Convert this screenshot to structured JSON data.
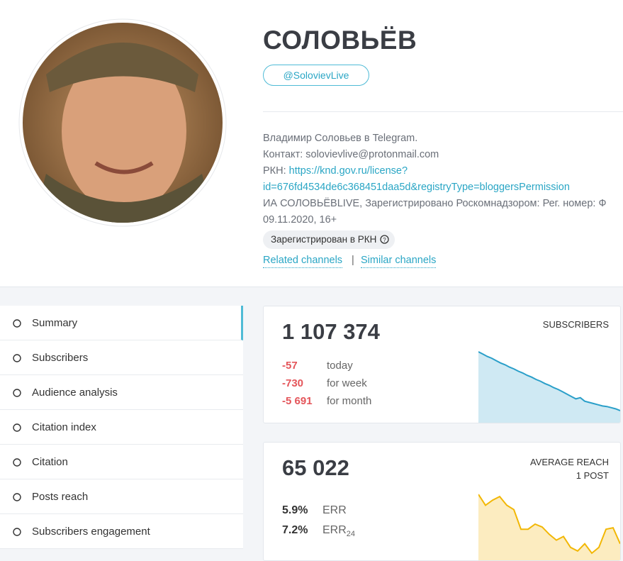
{
  "channel": {
    "title": "СОЛОВЬЁВ",
    "handle": "@SolovievLive",
    "description": {
      "line0": "Владимир Соловьев в Telegram.",
      "line1": "Контакт: solovievlive@protonmail.com",
      "rkn_prefix": "РКН: ",
      "rkn_link_1": "https://knd.gov.ru/license?",
      "rkn_link_2": "id=676fd4534de6c368451daa5d&registryType=bloggersPermission",
      "line4": "ИА СОЛОВЬЁВLIVE, Зарегистрировано Роскомнадзором: Рег. номер: Ф",
      "line5": "09.11.2020, 16+"
    },
    "badge": "Зарегистрирован в РКН",
    "links": [
      "Related channels",
      "Similar channels"
    ],
    "separator": "|"
  },
  "menu": [
    "Summary",
    "Subscribers",
    "Audience analysis",
    "Citation index",
    "Citation",
    "Posts reach",
    "Subscribers engagement"
  ],
  "subscribers_card": {
    "value": "1 107 374",
    "label": "SUBSCRIBERS",
    "changes": [
      {
        "value": "-57",
        "period": "today"
      },
      {
        "value": "-730",
        "period": "for week"
      },
      {
        "value": "-5 691",
        "period": "for month"
      }
    ],
    "trend": [
      100,
      96,
      92,
      89,
      85,
      81,
      78,
      74,
      71,
      67,
      64,
      60,
      57,
      53,
      50,
      46,
      43,
      39,
      36,
      32,
      28,
      24,
      20,
      22,
      16,
      14,
      12,
      10,
      8,
      7,
      5,
      3,
      0
    ]
  },
  "reach_card": {
    "value": "65 022",
    "label": [
      "AVERAGE REACH",
      "1 POST"
    ],
    "stats": [
      {
        "value": "5.9%",
        "label": "ERR"
      },
      {
        "value": "7.2%",
        "label": "ERR",
        "sub": "24"
      }
    ],
    "trend": [
      92,
      77,
      84,
      89,
      77,
      71,
      44,
      44,
      51,
      47,
      37,
      29,
      34,
      19,
      14,
      24,
      11,
      19,
      44,
      46,
      24
    ]
  }
}
